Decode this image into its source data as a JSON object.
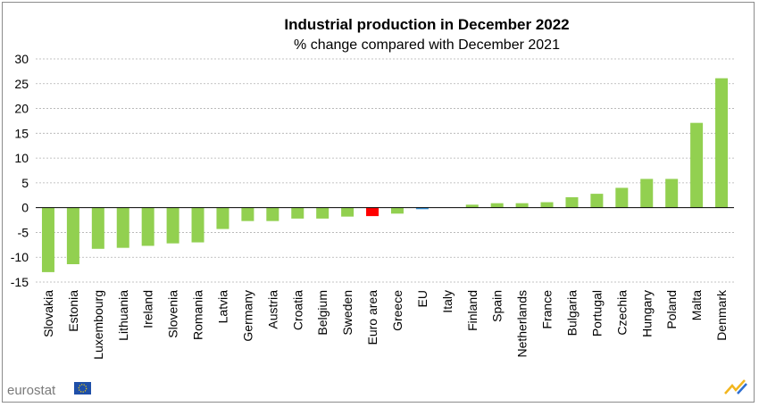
{
  "chart_data": {
    "type": "bar",
    "title": "Industrial production in December 2022",
    "subtitle": "% change compared with December 2021",
    "xlabel": "",
    "ylabel": "",
    "ylim": [
      -15,
      30
    ],
    "yticks": [
      30,
      25,
      20,
      15,
      10,
      5,
      0,
      -5,
      -10,
      -15
    ],
    "grid": true,
    "categories": [
      "Slovakia",
      "Estonia",
      "Luxembourg",
      "Lithuania",
      "Ireland",
      "Slovenia",
      "Romania",
      "Latvia",
      "Germany",
      "Austria",
      "Croatia",
      "Belgium",
      "Sweden",
      "Euro area",
      "Greece",
      "EU",
      "Italy",
      "Finland",
      "Spain",
      "Netherlands",
      "France",
      "Bulgaria",
      "Portugal",
      "Czechia",
      "Hungary",
      "Poland",
      "Malta",
      "Denmark"
    ],
    "values": [
      -13.0,
      -11.4,
      -8.3,
      -8.1,
      -7.7,
      -7.2,
      -7.0,
      -4.3,
      -2.7,
      -2.7,
      -2.2,
      -2.2,
      -1.8,
      -1.7,
      -1.2,
      -0.3,
      0.0,
      0.6,
      0.9,
      0.9,
      1.1,
      2.1,
      2.8,
      4.0,
      5.8,
      5.8,
      17.1,
      26.1
    ],
    "colors": {
      "default": "#92d050",
      "Euro area": "#ff0000",
      "EU": "#2f8fd8"
    }
  },
  "branding": {
    "logo_text": "eurostat",
    "logo_icon": "eu-flag-icon",
    "corner_icon": "eurostat-swoosh-icon"
  }
}
